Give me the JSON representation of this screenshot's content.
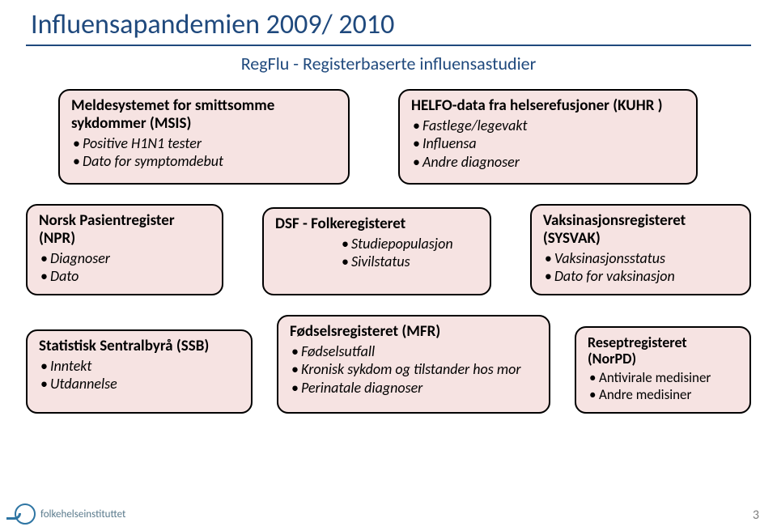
{
  "colors": {
    "title": "#1f497d",
    "rule": "#1f497d",
    "subtitle": "#1f497d",
    "card_border": "#000000",
    "card_fill": "#f6e3e2",
    "logo": "#2e75a3",
    "logo_text": "#5a7a8c",
    "page_num": "#7f7f7f"
  },
  "title": "Influensapandemien 2009/ 2010",
  "subtitle": "RegFlu - Registerbaserte influensastudier",
  "row1": [
    {
      "title": "Meldesystemet for smittsomme sykdommer (MSIS)",
      "items": [
        "Positive H1N1 tester",
        "Dato for symptomdebut"
      ]
    },
    {
      "title": "HELFO-data fra  helserefusjoner (KUHR )",
      "items": [
        "Fastlege/legevakt",
        "Influensa",
        "Andre diagnoser"
      ]
    }
  ],
  "row2": [
    {
      "title": "Norsk Pasientregister (NPR)",
      "items": [
        "Diagnoser",
        "Dato"
      ]
    },
    {
      "title": "DSF - Folkeregisteret",
      "items": [
        "Studiepopulasjon",
        "Sivilstatus"
      ]
    },
    {
      "title": "Vaksinasjonsregisteret (SYSVAK)",
      "items": [
        "Vaksinasjonsstatus",
        "Dato for vaksinasjon"
      ]
    }
  ],
  "row3": [
    {
      "title": "Statistisk Sentralbyrå (SSB)",
      "items": [
        "Inntekt",
        "Utdannelse"
      ]
    },
    {
      "title": "Fødselsregisteret (MFR)",
      "items": [
        "Fødselsutfall",
        "Kronisk sykdom og tilstander hos mor",
        "Perinatale diagnoser"
      ]
    },
    {
      "title": "Reseptregisteret (NorPD)",
      "items": [
        "Antivirale medisiner",
        "Andre medisiner"
      ]
    }
  ],
  "footer": {
    "logo_text": "folkehelseinstituttet"
  },
  "page_number": "3"
}
